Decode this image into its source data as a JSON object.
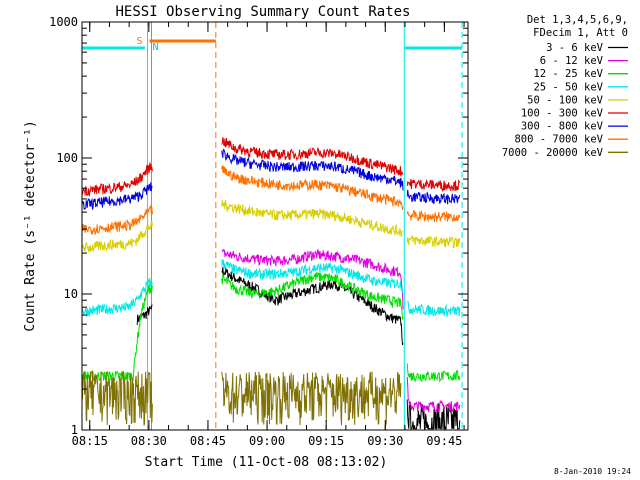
{
  "chart_data": {
    "type": "line",
    "title": "HESSI Observing Summary Count Rates",
    "xlabel": "Start Time (11-Oct-08 08:13:02)",
    "ylabel": "Count Rate (s⁻¹ detector⁻¹)",
    "y_scale": "log",
    "ylim": [
      1,
      1000
    ],
    "xlim": [
      "08:13:02",
      "09:51:00"
    ],
    "x_ticks": [
      "08:15",
      "08:30",
      "08:45",
      "09:00",
      "09:15",
      "09:30",
      "09:45"
    ],
    "y_ticks": [
      "1",
      "10",
      "100",
      "1000"
    ],
    "legend_header": [
      "Det 1,3,4,5,6,9,",
      "FDecim 1, Att 0"
    ],
    "legend_position": "right, outside plot",
    "timestamp": "8-Jan-2010 19:24",
    "flags": {
      "saa_label": "S",
      "night_label": "N",
      "saa_interval": [
        "08:30:10",
        "08:47:00"
      ],
      "night_bars": [
        [
          "08:13:02",
          "08:29:00"
        ],
        [
          "09:35:00",
          "09:49:30"
        ]
      ],
      "orange_marks": [
        "08:30:40",
        "08:47:00"
      ],
      "cyan_marks": [
        "08:29:40",
        "09:34:50",
        "09:49:30"
      ]
    },
    "gaps": [
      [
        "08:31:00",
        "08:48:30"
      ],
      [
        "09:34:30",
        "09:35:30"
      ]
    ],
    "series": [
      {
        "name": "3 - 6 keV",
        "color": "#000000",
        "x": [
          "08:13:02",
          "08:15",
          "08:20",
          "08:25",
          "08:26",
          "08:27",
          "08:28",
          "08:29",
          "08:30",
          "08:48:30",
          "08:52",
          "08:57",
          "09:02",
          "09:07",
          "09:12",
          "09:17",
          "09:22",
          "09:27",
          "09:31",
          "09:34",
          "09:36",
          "09:41",
          "09:46",
          "09:49"
        ],
        "y": [
          null,
          null,
          null,
          null,
          null,
          6.5,
          6.8,
          7.0,
          7.5,
          15,
          13,
          11,
          9,
          10,
          11,
          12,
          10,
          8,
          6.8,
          6.3,
          1.05,
          1.05,
          1.05,
          1.05
        ]
      },
      {
        "name": "6 - 12 keV",
        "color": "#e000e0",
        "x": [
          "08:13:02",
          "08:29",
          "08:48:30",
          "08:52",
          "08:57",
          "09:02",
          "09:07",
          "09:12",
          "09:17",
          "09:22",
          "09:27",
          "09:31",
          "09:34",
          "09:36",
          "09:41",
          "09:46",
          "09:49"
        ],
        "y": [
          null,
          null,
          20,
          19,
          18,
          17.5,
          18,
          19.5,
          19,
          18,
          16.5,
          15,
          14.5,
          1.5,
          1.5,
          1.5,
          1.5
        ]
      },
      {
        "name": "12 - 25 keV",
        "color": "#00e000",
        "x": [
          "08:13:02",
          "08:15",
          "08:20",
          "08:25",
          "08:26",
          "08:27",
          "08:28",
          "08:29",
          "08:30",
          "08:48:30",
          "08:52",
          "08:57",
          "09:02",
          "09:07",
          "09:12",
          "09:17",
          "09:22",
          "09:27",
          "09:31",
          "09:34",
          "09:36",
          "09:41",
          "09:46",
          "09:49"
        ],
        "y": [
          2.5,
          2.5,
          2.5,
          2.5,
          2.5,
          4.5,
          7,
          9,
          11,
          13,
          11,
          10,
          10.5,
          12,
          13.5,
          13,
          11,
          9.5,
          9,
          8.5,
          2.5,
          2.5,
          2.5,
          2.5
        ]
      },
      {
        "name": "25 - 50 keV",
        "color": "#00e8e8",
        "x": [
          "08:13:02",
          "08:15",
          "08:20",
          "08:25",
          "08:26",
          "08:27",
          "08:28",
          "08:29",
          "08:30",
          "08:48:30",
          "08:52",
          "08:57",
          "09:02",
          "09:07",
          "09:12",
          "09:17",
          "09:22",
          "09:27",
          "09:31",
          "09:34",
          "09:36",
          "09:41",
          "09:46",
          "09:49"
        ],
        "y": [
          7.5,
          7.5,
          7.8,
          8,
          8.5,
          9,
          10,
          11,
          12,
          17,
          15,
          14,
          14,
          14.5,
          15.5,
          15.5,
          14,
          12.5,
          12,
          12,
          7.8,
          7.6,
          7.5,
          7.5
        ]
      },
      {
        "name": "50 - 100 keV",
        "color": "#d8d000",
        "x": [
          "08:13:02",
          "08:15",
          "08:20",
          "08:25",
          "08:26",
          "08:27",
          "08:28",
          "08:29",
          "08:30",
          "08:48:30",
          "08:52",
          "08:57",
          "09:02",
          "09:07",
          "09:12",
          "09:17",
          "09:22",
          "09:27",
          "09:31",
          "09:34",
          "09:36",
          "09:41",
          "09:46",
          "09:49"
        ],
        "y": [
          22,
          22,
          23,
          23.5,
          24,
          25,
          27,
          29,
          31,
          46,
          43,
          40,
          38,
          38,
          39,
          38,
          35,
          32,
          30,
          29,
          25,
          24.5,
          24,
          24
        ]
      },
      {
        "name": "100 - 300 keV",
        "color": "#e00000",
        "x": [
          "08:13:02",
          "08:15",
          "08:20",
          "08:25",
          "08:26",
          "08:27",
          "08:28",
          "08:29",
          "08:30",
          "08:48:30",
          "08:52",
          "08:57",
          "09:02",
          "09:07",
          "09:12",
          "09:17",
          "09:22",
          "09:27",
          "09:31",
          "09:34",
          "09:36",
          "09:41",
          "09:46",
          "09:49"
        ],
        "y": [
          58,
          58,
          60,
          63,
          65,
          68,
          72,
          78,
          85,
          135,
          118,
          110,
          106,
          106,
          110,
          108,
          100,
          90,
          85,
          80,
          65,
          64,
          63,
          63
        ]
      },
      {
        "name": "300 - 800 keV",
        "color": "#0000e0",
        "x": [
          "08:13:02",
          "08:15",
          "08:20",
          "08:25",
          "08:26",
          "08:27",
          "08:28",
          "08:29",
          "08:30",
          "08:48:30",
          "08:52",
          "08:57",
          "09:02",
          "09:07",
          "09:12",
          "09:17",
          "09:22",
          "09:27",
          "09:31",
          "09:34",
          "09:36",
          "09:41",
          "09:46",
          "09:49"
        ],
        "y": [
          45,
          46,
          48,
          50,
          51,
          52,
          54,
          57,
          60,
          110,
          96,
          90,
          86,
          86,
          88,
          87,
          80,
          73,
          70,
          66,
          52,
          51,
          50,
          50
        ]
      },
      {
        "name": "800 - 7000 keV",
        "color": "#ff7000",
        "x": [
          "08:13:02",
          "08:15",
          "08:20",
          "08:25",
          "08:26",
          "08:27",
          "08:28",
          "08:29",
          "08:30",
          "08:48:30",
          "08:52",
          "08:57",
          "09:02",
          "09:07",
          "09:12",
          "09:17",
          "09:22",
          "09:27",
          "09:31",
          "09:34",
          "09:36",
          "09:41",
          "09:46",
          "09:49"
        ],
        "y": [
          30,
          30,
          31,
          32,
          33,
          34,
          36,
          38,
          40,
          82,
          72,
          67,
          64,
          63,
          64,
          62,
          57,
          52,
          49,
          47,
          38,
          37,
          37,
          37
        ]
      },
      {
        "name": "7000 - 20000 keV",
        "color": "#807000",
        "x": [
          "08:13:02",
          "08:15",
          "08:20",
          "08:25",
          "08:28",
          "08:30",
          "08:48:30",
          "08:52",
          "08:57",
          "09:02",
          "09:07",
          "09:12",
          "09:17",
          "09:22",
          "09:27",
          "09:31",
          "09:34",
          "09:36",
          "09:41",
          "09:46",
          "09:49"
        ],
        "y": [
          1.8,
          1.8,
          1.8,
          1.8,
          1.8,
          1.8,
          1.8,
          1.8,
          1.8,
          1.8,
          1.8,
          1.8,
          1.8,
          1.8,
          1.8,
          1.8,
          1.8,
          null,
          null,
          null,
          null
        ]
      }
    ]
  }
}
